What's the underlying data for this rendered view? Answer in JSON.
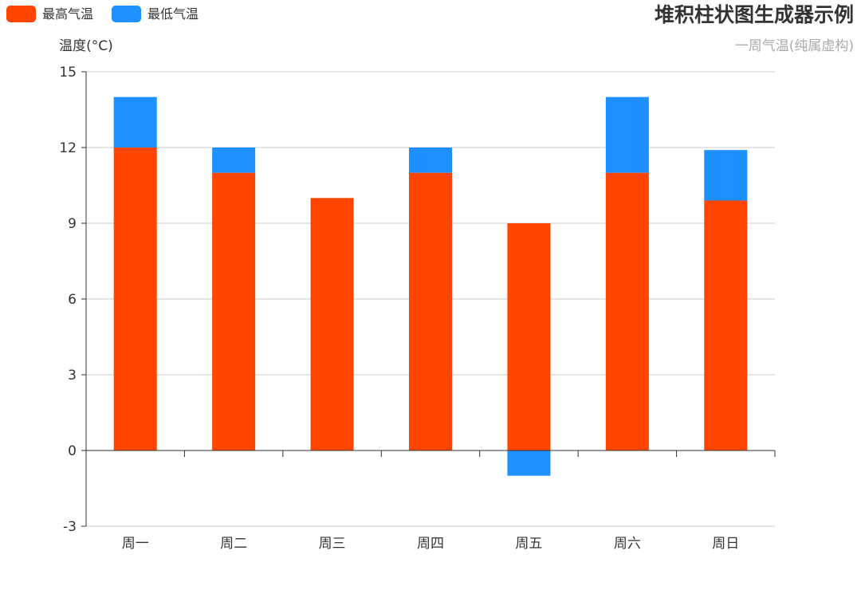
{
  "chart_data": {
    "type": "bar",
    "stacked": true,
    "title": "堆积柱状图生成器示例",
    "subtitle": "一周气温(纯属虚构)",
    "ylabel": "温度(°C)",
    "xlabel": "",
    "categories": [
      "周一",
      "周二",
      "周三",
      "周四",
      "周五",
      "周六",
      "周日"
    ],
    "series": [
      {
        "name": "最高气温",
        "color": "#ff4500",
        "values": [
          12,
          11,
          10,
          11,
          9,
          11,
          9.9
        ]
      },
      {
        "name": "最低气温",
        "color": "#1e90ff",
        "values": [
          2,
          1,
          0,
          1,
          -1,
          3,
          2
        ]
      }
    ],
    "ylim": [
      -3,
      15
    ],
    "yticks": [
      -3,
      0,
      3,
      6,
      9,
      12,
      15
    ],
    "grid": true,
    "legend_position": "top-left"
  }
}
